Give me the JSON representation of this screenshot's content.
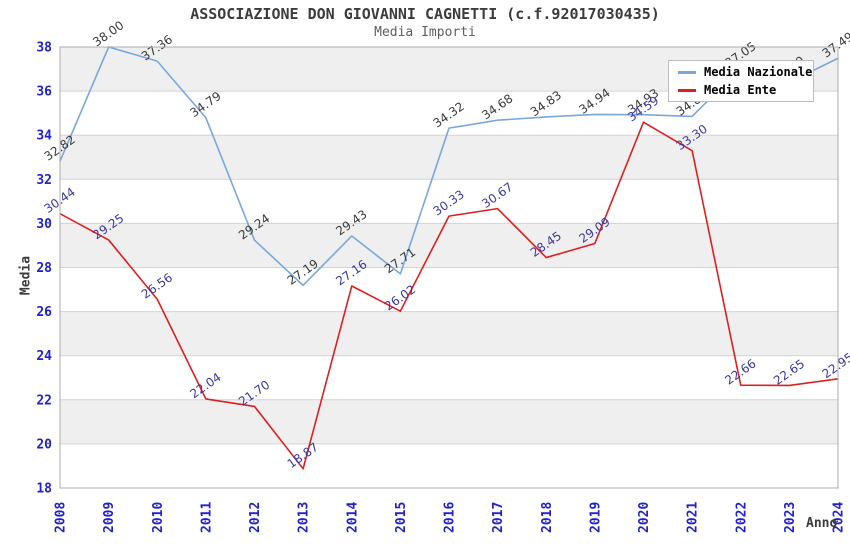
{
  "header": {
    "title": "ASSOCIAZIONE DON GIOVANNI CAGNETTI (c.f.92017030435)",
    "subtitle": "Media Importi"
  },
  "legend": {
    "position": "top-right",
    "items": [
      {
        "label": "Media Nazionale"
      },
      {
        "label": "Media Ente"
      }
    ]
  },
  "axes": {
    "y_title": "Media",
    "x_title": "Anno"
  },
  "chart_data": {
    "type": "line",
    "title": "ASSOCIAZIONE DON GIOVANNI CAGNETTI (c.f.92017030435)",
    "subtitle": "Media Importi",
    "xlabel": "Anno",
    "ylabel": "Media",
    "x": [
      2008,
      2009,
      2010,
      2011,
      2012,
      2013,
      2014,
      2015,
      2016,
      2017,
      2018,
      2019,
      2020,
      2021,
      2022,
      2023,
      2024
    ],
    "series": [
      {
        "name": "Media Nazionale",
        "color": "#79A8DB",
        "label_color": "#3A3A3A",
        "values": [
          32.82,
          38.0,
          37.36,
          34.79,
          29.24,
          27.19,
          29.43,
          27.71,
          34.32,
          34.68,
          34.83,
          34.94,
          34.93,
          34.85,
          37.05,
          36.4,
          37.49
        ]
      },
      {
        "name": "Media Ente",
        "color": "#DC2020",
        "label_color": "#3939A0",
        "values": [
          30.44,
          29.25,
          26.56,
          22.04,
          21.7,
          18.87,
          27.16,
          26.02,
          30.33,
          30.67,
          28.45,
          29.09,
          34.59,
          33.3,
          22.66,
          22.65,
          22.95
        ]
      }
    ],
    "ylim": [
      18,
      38
    ],
    "ytick_step": 2,
    "yticks": [
      18,
      20,
      22,
      24,
      26,
      28,
      30,
      32,
      34,
      36,
      38
    ],
    "grid": true,
    "bands": true,
    "legend_position": "top-right",
    "point_labels_shown": true
  },
  "colors": {
    "tick_label": "#2121CE",
    "band_gray": "#EFEFEF",
    "band_white": "#FFFFFF",
    "gridline": "#D3D3D3",
    "plot_border": "#ADADAD",
    "title": "#3C3C3C",
    "subtitle": "#5E5E5E",
    "axis_title": "#3C3C3C",
    "legend_border": "#BDBDBD",
    "legend_text": "#000000"
  }
}
